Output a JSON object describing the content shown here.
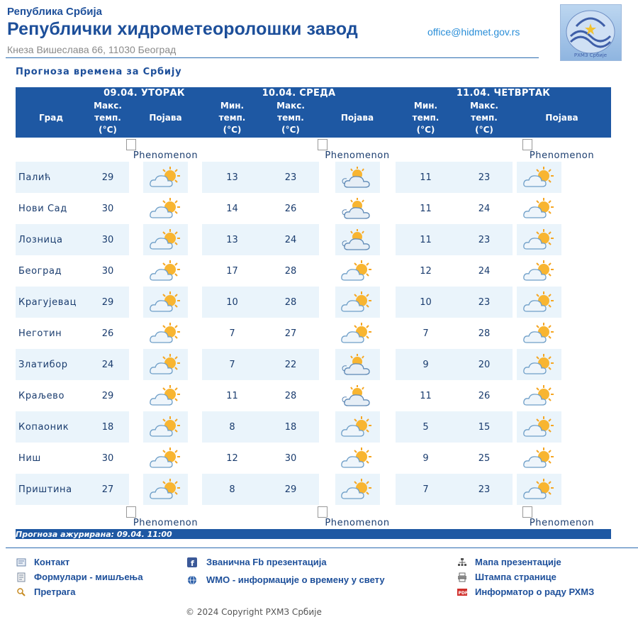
{
  "header": {
    "country": "Република Србија",
    "institute": "Републички хидрометеоролошки завод",
    "address": "Кнеза Вишеслава 66, 11030  Београд",
    "email": "office@hidmet.gov.rs",
    "logo_text": "РХМЗ Србије"
  },
  "subtitle": "Прогноза времена за Србију",
  "table": {
    "col_city": "Град",
    "col_max": [
      "Макс.",
      "темп.",
      "(°C)"
    ],
    "col_min": [
      "Мин.",
      "темп.",
      "(°C)"
    ],
    "col_phen": "Појава",
    "days": [
      "09.04. УТОРАК",
      "10.04. СРЕДА",
      "11.04. ЧЕТВРТАК"
    ],
    "phenomenon_alt": "Phenomenon",
    "updated": "Прогноза ажурирана:  09.04. 11:00"
  },
  "rows": [
    {
      "city": "Палић",
      "d1_max": "29",
      "d1_icon": "sun-cloud-icon",
      "d2_min": "13",
      "d2_max": "23",
      "d2_icon": "cloud-sun-icon",
      "d3_min": "11",
      "d3_max": "23",
      "d3_icon": "sun-cloud-icon"
    },
    {
      "city": "Нови Сад",
      "d1_max": "30",
      "d1_icon": "sun-cloud-icon",
      "d2_min": "14",
      "d2_max": "26",
      "d2_icon": "cloud-sun-icon",
      "d3_min": "11",
      "d3_max": "24",
      "d3_icon": "sun-cloud-icon"
    },
    {
      "city": "Лозница",
      "d1_max": "30",
      "d1_icon": "sun-cloud-icon",
      "d2_min": "13",
      "d2_max": "24",
      "d2_icon": "cloud-sun-icon",
      "d3_min": "11",
      "d3_max": "23",
      "d3_icon": "sun-cloud-icon"
    },
    {
      "city": "Београд",
      "d1_max": "30",
      "d1_icon": "sun-cloud-icon",
      "d2_min": "17",
      "d2_max": "28",
      "d2_icon": "sun-cloud-icon",
      "d3_min": "12",
      "d3_max": "24",
      "d3_icon": "sun-cloud-icon"
    },
    {
      "city": "Крагујевац",
      "d1_max": "29",
      "d1_icon": "sun-cloud-icon",
      "d2_min": "10",
      "d2_max": "28",
      "d2_icon": "sun-cloud-icon",
      "d3_min": "10",
      "d3_max": "23",
      "d3_icon": "sun-cloud-icon"
    },
    {
      "city": "Неготин",
      "d1_max": "26",
      "d1_icon": "sun-cloud-icon",
      "d2_min": "7",
      "d2_max": "27",
      "d2_icon": "sun-cloud-icon",
      "d3_min": "7",
      "d3_max": "28",
      "d3_icon": "sun-cloud-icon"
    },
    {
      "city": "Златибор",
      "d1_max": "24",
      "d1_icon": "sun-cloud-icon",
      "d2_min": "7",
      "d2_max": "22",
      "d2_icon": "cloud-sun-icon",
      "d3_min": "9",
      "d3_max": "20",
      "d3_icon": "sun-cloud-icon"
    },
    {
      "city": "Краљево",
      "d1_max": "29",
      "d1_icon": "sun-cloud-icon",
      "d2_min": "11",
      "d2_max": "28",
      "d2_icon": "cloud-sun-icon",
      "d3_min": "11",
      "d3_max": "26",
      "d3_icon": "sun-cloud-icon"
    },
    {
      "city": "Копаоник",
      "d1_max": "18",
      "d1_icon": "sun-cloud-icon",
      "d2_min": "8",
      "d2_max": "18",
      "d2_icon": "sun-cloud-icon",
      "d3_min": "5",
      "d3_max": "15",
      "d3_icon": "sun-cloud-icon"
    },
    {
      "city": "Ниш",
      "d1_max": "30",
      "d1_icon": "sun-cloud-icon",
      "d2_min": "12",
      "d2_max": "30",
      "d2_icon": "sun-cloud-icon",
      "d3_min": "9",
      "d3_max": "25",
      "d3_icon": "sun-cloud-icon"
    },
    {
      "city": "Приштина",
      "d1_max": "27",
      "d1_icon": "sun-cloud-icon",
      "d2_min": "8",
      "d2_max": "29",
      "d2_icon": "sun-cloud-icon",
      "d3_min": "7",
      "d3_max": "23",
      "d3_icon": "sun-cloud-icon"
    }
  ],
  "footer": {
    "links": [
      {
        "label": "Контакт",
        "icon": "contact-card-icon"
      },
      {
        "label": "Формулари - мишљења",
        "icon": "form-icon"
      },
      {
        "label": "Претрага",
        "icon": "search-icon"
      },
      {
        "label": "Званична Fb презентација",
        "icon": "facebook-icon"
      },
      {
        "label": "WMO - информације о времену у свету",
        "icon": "wmo-globe-icon"
      },
      {
        "label": "Мапа презентације",
        "icon": "sitemap-icon"
      },
      {
        "label": "Штампа странице",
        "icon": "printer-icon"
      },
      {
        "label": "Информатор о раду РХМЗ",
        "icon": "pdf-icon"
      }
    ],
    "copyright": "© 2024 Copyright РХМЗ Србије"
  },
  "colors": {
    "header_blue": "#1e58a3",
    "row_alt": "#eaf4fb",
    "link_blue": "#1d4f9a",
    "sun": "#f5a623",
    "cloud": "#8ab4d8"
  }
}
